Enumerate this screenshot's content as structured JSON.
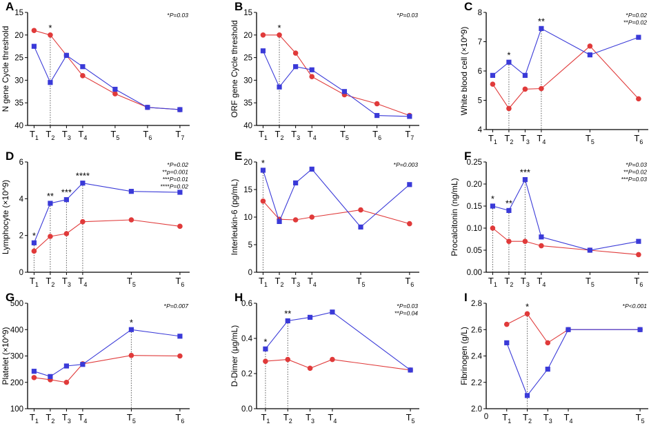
{
  "colors": {
    "blue": "#3a3ad8",
    "red": "#e03a3a",
    "axis": "#000000",
    "guide": "#555555"
  },
  "chart_data": [
    {
      "panel": "A",
      "type": "line",
      "title": "",
      "ylabel": "N gene Cycle threshold",
      "xlabel": "",
      "y_reversed": true,
      "ylim": [
        15,
        40
      ],
      "yticks": [
        15,
        20,
        25,
        30,
        35,
        40
      ],
      "x_ticks": [
        {
          "base": "T",
          "sub": "1",
          "x": 1
        },
        {
          "base": "T",
          "sub": "2",
          "x": 2
        },
        {
          "base": "T",
          "sub": "3",
          "x": 3
        },
        {
          "base": "T",
          "sub": "4",
          "x": 4
        },
        {
          "base": "T",
          "sub": "5",
          "x": 6
        },
        {
          "base": "T",
          "sub": "6",
          "x": 8
        },
        {
          "base": "T",
          "sub": "7",
          "x": 10
        }
      ],
      "xlim": [
        0.6,
        10.6
      ],
      "series": [
        {
          "name": "blue",
          "marker": "square",
          "x": [
            1,
            2,
            3,
            4,
            6,
            8,
            10
          ],
          "values": [
            22.5,
            30.5,
            24.5,
            27,
            32,
            36,
            36.5
          ]
        },
        {
          "name": "red",
          "marker": "circle",
          "x": [
            1,
            2,
            3,
            4,
            6,
            8,
            10
          ],
          "values": [
            19,
            20,
            24.5,
            29,
            33,
            36,
            36.5
          ]
        }
      ],
      "stars": [
        {
          "x": 2,
          "label": "*"
        }
      ],
      "pvalues": [
        {
          "stars": "*",
          "text": "P=0.03"
        }
      ]
    },
    {
      "panel": "B",
      "type": "line",
      "title": "",
      "ylabel": "ORF gene Cycle threshold",
      "xlabel": "",
      "y_reversed": true,
      "ylim": [
        15,
        40
      ],
      "yticks": [
        15,
        20,
        25,
        30,
        35,
        40
      ],
      "x_ticks": [
        {
          "base": "T",
          "sub": "1",
          "x": 1
        },
        {
          "base": "T",
          "sub": "2",
          "x": 2
        },
        {
          "base": "T",
          "sub": "3",
          "x": 3
        },
        {
          "base": "T",
          "sub": "4",
          "x": 4
        },
        {
          "base": "T",
          "sub": "5",
          "x": 6
        },
        {
          "base": "T",
          "sub": "6",
          "x": 8
        },
        {
          "base": "T",
          "sub": "7",
          "x": 10
        }
      ],
      "xlim": [
        0.6,
        10.6
      ],
      "series": [
        {
          "name": "blue",
          "marker": "square",
          "x": [
            1,
            2,
            3,
            4,
            6,
            8,
            10
          ],
          "values": [
            23.5,
            31.5,
            27,
            27.7,
            32.5,
            37.8,
            38
          ]
        },
        {
          "name": "red",
          "marker": "circle",
          "x": [
            1,
            2,
            3,
            4,
            6,
            8,
            10
          ],
          "values": [
            20,
            20,
            24,
            29.2,
            33.2,
            35.2,
            37.8
          ]
        }
      ],
      "stars": [
        {
          "x": 2,
          "label": "*"
        }
      ],
      "pvalues": [
        {
          "stars": "*",
          "text": "P=0.03"
        }
      ]
    },
    {
      "panel": "C",
      "type": "line",
      "title": "",
      "ylabel": "White blood cell (×10^9)",
      "xlabel": "",
      "y_reversed": false,
      "ylim": [
        4,
        8
      ],
      "yticks": [
        4,
        5,
        6,
        7,
        8
      ],
      "x_ticks": [
        {
          "base": "T",
          "sub": "1",
          "x": 1
        },
        {
          "base": "T",
          "sub": "2",
          "x": 2
        },
        {
          "base": "T",
          "sub": "3",
          "x": 3
        },
        {
          "base": "T",
          "sub": "4",
          "x": 4
        },
        {
          "base": "T",
          "sub": "5",
          "x": 7
        },
        {
          "base": "T",
          "sub": "6",
          "x": 10
        }
      ],
      "xlim": [
        0.6,
        10.6
      ],
      "series": [
        {
          "name": "blue",
          "marker": "square",
          "x": [
            1,
            2,
            3,
            4,
            7,
            10
          ],
          "values": [
            5.85,
            6.3,
            5.85,
            7.45,
            6.55,
            7.15
          ]
        },
        {
          "name": "red",
          "marker": "circle",
          "x": [
            1,
            2,
            3,
            4,
            7,
            10
          ],
          "values": [
            5.55,
            4.72,
            5.38,
            5.4,
            6.85,
            5.05
          ]
        }
      ],
      "stars": [
        {
          "x": 2,
          "label": "*"
        },
        {
          "x": 4,
          "label": "**"
        }
      ],
      "pvalues": [
        {
          "stars": "*",
          "text": "P=0.02"
        },
        {
          "stars": "**",
          "text": "P=0.02"
        }
      ]
    },
    {
      "panel": "D",
      "type": "line",
      "title": "",
      "ylabel": "Lymphocyte (×10^9)",
      "xlabel": "",
      "y_reversed": false,
      "ylim": [
        0,
        6
      ],
      "yticks": [
        0,
        2,
        4,
        6
      ],
      "x_ticks": [
        {
          "base": "T",
          "sub": "1",
          "x": 1
        },
        {
          "base": "T",
          "sub": "2",
          "x": 2
        },
        {
          "base": "T",
          "sub": "3",
          "x": 3
        },
        {
          "base": "T",
          "sub": "4",
          "x": 4
        },
        {
          "base": "T",
          "sub": "5",
          "x": 7
        },
        {
          "base": "T",
          "sub": "6",
          "x": 10
        }
      ],
      "xlim": [
        0.6,
        10.6
      ],
      "series": [
        {
          "name": "blue",
          "marker": "square",
          "x": [
            1,
            2,
            3,
            4,
            7,
            10
          ],
          "values": [
            1.6,
            3.75,
            3.95,
            4.85,
            4.4,
            4.35
          ]
        },
        {
          "name": "red",
          "marker": "circle",
          "x": [
            1,
            2,
            3,
            4,
            7,
            10
          ],
          "values": [
            1.15,
            1.95,
            2.1,
            2.75,
            2.85,
            2.5
          ]
        }
      ],
      "stars": [
        {
          "x": 1,
          "label": "*"
        },
        {
          "x": 2,
          "label": "**"
        },
        {
          "x": 3,
          "label": "***"
        },
        {
          "x": 4,
          "label": "****"
        }
      ],
      "pvalues": [
        {
          "stars": "*",
          "text": "P=0.02"
        },
        {
          "stars": "**",
          "text": "p=0.001"
        },
        {
          "stars": "***",
          "text": "P=0.01"
        },
        {
          "stars": "****",
          "text": "P=0.02"
        }
      ]
    },
    {
      "panel": "E",
      "type": "line",
      "title": "",
      "ylabel": "Interleukin-6 (pg/mL)",
      "xlabel": "",
      "y_reversed": false,
      "ylim": [
        0,
        20
      ],
      "yticks": [
        0,
        5,
        10,
        15,
        20
      ],
      "x_ticks": [
        {
          "base": "T",
          "sub": "1",
          "x": 1
        },
        {
          "base": "T",
          "sub": "2",
          "x": 2
        },
        {
          "base": "T",
          "sub": "3",
          "x": 3
        },
        {
          "base": "T",
          "sub": "4",
          "x": 4
        },
        {
          "base": "T",
          "sub": "5",
          "x": 7
        },
        {
          "base": "T",
          "sub": "6",
          "x": 10
        }
      ],
      "xlim": [
        0.6,
        10.6
      ],
      "series": [
        {
          "name": "blue",
          "marker": "square",
          "x": [
            1,
            2,
            3,
            4,
            7,
            10
          ],
          "values": [
            18.5,
            9.2,
            16.2,
            18.7,
            8.2,
            15.9
          ]
        },
        {
          "name": "red",
          "marker": "circle",
          "x": [
            1,
            2,
            3,
            4,
            7,
            10
          ],
          "values": [
            12.9,
            9.6,
            9.5,
            10,
            11.3,
            8.8
          ]
        }
      ],
      "stars": [
        {
          "x": 1,
          "label": "*"
        }
      ],
      "pvalues": [
        {
          "stars": "*",
          "text": "P=0.003"
        }
      ]
    },
    {
      "panel": "F",
      "type": "line",
      "title": "",
      "ylabel": "Procalcitonin (ng/mL)",
      "xlabel": "",
      "y_reversed": false,
      "ylim": [
        0,
        0.25
      ],
      "yticks": [
        0.0,
        0.05,
        0.1,
        0.15,
        0.2,
        0.25
      ],
      "tick_decimals": 2,
      "x_ticks": [
        {
          "base": "T",
          "sub": "1",
          "x": 1
        },
        {
          "base": "T",
          "sub": "2",
          "x": 2
        },
        {
          "base": "T",
          "sub": "3",
          "x": 3
        },
        {
          "base": "T",
          "sub": "4",
          "x": 4
        },
        {
          "base": "T",
          "sub": "5",
          "x": 7
        },
        {
          "base": "T",
          "sub": "6",
          "x": 10
        }
      ],
      "xlim": [
        0.6,
        10.6
      ],
      "series": [
        {
          "name": "blue",
          "marker": "square",
          "x": [
            1,
            2,
            3,
            4,
            7,
            10
          ],
          "values": [
            0.15,
            0.14,
            0.21,
            0.08,
            0.05,
            0.07
          ]
        },
        {
          "name": "red",
          "marker": "circle",
          "x": [
            1,
            2,
            3,
            4,
            7,
            10
          ],
          "values": [
            0.1,
            0.07,
            0.07,
            0.06,
            0.05,
            0.04
          ]
        }
      ],
      "stars": [
        {
          "x": 1,
          "label": "*"
        },
        {
          "x": 2,
          "label": "**"
        },
        {
          "x": 3,
          "label": "***"
        }
      ],
      "pvalues": [
        {
          "stars": "*",
          "text": "P=0.03"
        },
        {
          "stars": "**",
          "text": "P=0.02"
        },
        {
          "stars": "***",
          "text": "P=0.03"
        }
      ]
    },
    {
      "panel": "G",
      "type": "line",
      "title": "",
      "ylabel": "Platelet (×10^9)",
      "xlabel": "",
      "y_reversed": false,
      "ylim": [
        100,
        500
      ],
      "yticks": [
        100,
        200,
        300,
        400,
        500
      ],
      "x_ticks": [
        {
          "base": "T",
          "sub": "1",
          "x": 1
        },
        {
          "base": "T",
          "sub": "2",
          "x": 2
        },
        {
          "base": "T",
          "sub": "3",
          "x": 3
        },
        {
          "base": "T",
          "sub": "4",
          "x": 4
        },
        {
          "base": "T",
          "sub": "5",
          "x": 7
        },
        {
          "base": "T",
          "sub": "6",
          "x": 10
        }
      ],
      "xlim": [
        0.6,
        10.6
      ],
      "series": [
        {
          "name": "blue",
          "marker": "square",
          "x": [
            1,
            2,
            3,
            4,
            7,
            10
          ],
          "values": [
            242,
            222,
            262,
            268,
            400,
            375
          ]
        },
        {
          "name": "red",
          "marker": "circle",
          "x": [
            1,
            2,
            3,
            4,
            7,
            10
          ],
          "values": [
            218,
            210,
            200,
            270,
            302,
            300
          ]
        }
      ],
      "stars": [
        {
          "x": 7,
          "label": "*"
        }
      ],
      "pvalues": [
        {
          "stars": "*",
          "text": "P=0.007"
        }
      ]
    },
    {
      "panel": "H",
      "type": "line",
      "title": "",
      "ylabel": "D-Dimer (μg/mL)",
      "xlabel": "",
      "y_reversed": false,
      "ylim": [
        0,
        0.6
      ],
      "yticks": [
        0.0,
        0.2,
        0.4,
        0.6
      ],
      "tick_decimals": 1,
      "x_ticks": [
        {
          "base": "T",
          "sub": "1",
          "x": 1
        },
        {
          "base": "T",
          "sub": "2",
          "x": 2
        },
        {
          "base": "T",
          "sub": "3",
          "x": 3
        },
        {
          "base": "T",
          "sub": "4",
          "x": 4
        },
        {
          "base": "T",
          "sub": "5",
          "x": 7.5
        }
      ],
      "xlim": [
        0.6,
        7.9
      ],
      "series": [
        {
          "name": "blue",
          "marker": "square",
          "x": [
            1,
            2,
            3,
            4,
            7.5
          ],
          "values": [
            0.34,
            0.5,
            0.52,
            0.55,
            0.22
          ]
        },
        {
          "name": "red",
          "marker": "circle",
          "x": [
            1,
            2,
            3,
            4,
            7.5
          ],
          "values": [
            0.27,
            0.28,
            0.23,
            0.28,
            0.22
          ]
        }
      ],
      "stars": [
        {
          "x": 1,
          "label": "*"
        },
        {
          "x": 2,
          "label": "**"
        }
      ],
      "pvalues": [
        {
          "stars": "*",
          "text": "P=0.03"
        },
        {
          "stars": "**",
          "text": "P=0.04"
        }
      ]
    },
    {
      "panel": "I",
      "type": "line",
      "title": "",
      "ylabel": "Fibrinogen (g/L)",
      "xlabel": "",
      "y_reversed": false,
      "ylim": [
        2.0,
        2.8
      ],
      "yticks": [
        2.0,
        2.2,
        2.4,
        2.6,
        2.8
      ],
      "tick_decimals": 1,
      "x_origin_label": "0",
      "x_ticks": [
        {
          "base": "T",
          "sub": "1",
          "x": 1
        },
        {
          "base": "T",
          "sub": "2",
          "x": 2
        },
        {
          "base": "T",
          "sub": "3",
          "x": 3
        },
        {
          "base": "T",
          "sub": "4",
          "x": 4
        },
        {
          "base": "T",
          "sub": "5",
          "x": 7.5
        }
      ],
      "xlim": [
        0,
        7.9
      ],
      "series": [
        {
          "name": "blue",
          "marker": "square",
          "x": [
            1,
            2,
            3,
            4,
            7.5
          ],
          "values": [
            2.5,
            2.1,
            2.3,
            2.6,
            2.6
          ]
        },
        {
          "name": "red",
          "marker": "circle",
          "x": [
            1,
            2,
            3,
            4,
            7.5
          ],
          "values": [
            2.64,
            2.72,
            2.5,
            2.6,
            2.6
          ]
        }
      ],
      "stars": [
        {
          "x": 2,
          "label": "*"
        }
      ],
      "pvalues": [
        {
          "stars": "*",
          "text": "P<0.001"
        }
      ]
    }
  ]
}
